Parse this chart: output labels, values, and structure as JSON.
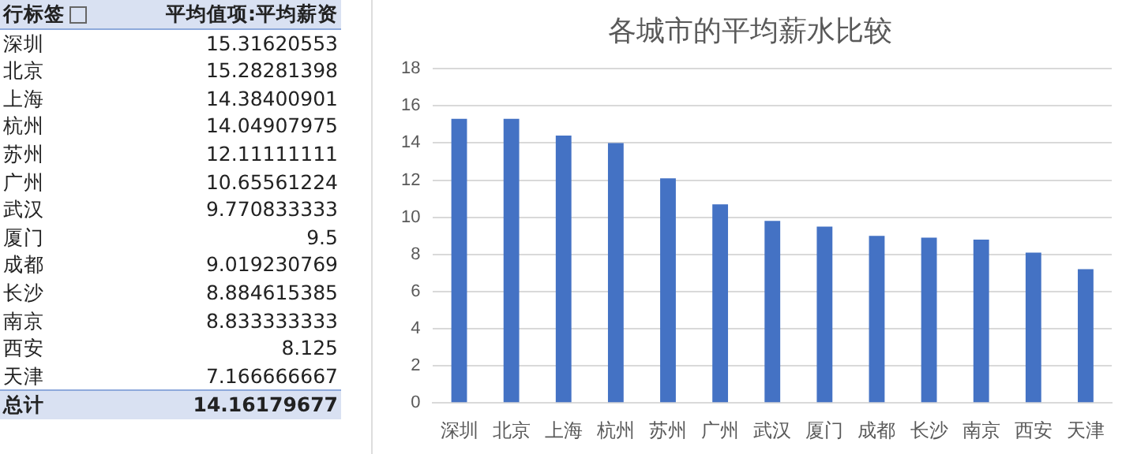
{
  "chart_data": [
    {
      "type": "other",
      "annotations": [
        "行标签",
        "平均值项:平均薪资",
        "深圳",
        "15.31620553",
        "北京",
        "15.28281398",
        "上海",
        "14.38400901",
        "杭州",
        "14.04907975",
        "苏州",
        "12.11111111",
        "广州",
        "10.65561224",
        "武汉",
        "9.770833333",
        "厦门",
        "9.5",
        "成都",
        "9.019230769",
        "长沙",
        "8.884615385",
        "南京",
        "8.833333333",
        "西安",
        "8.125",
        "天津",
        "7.166666667",
        "总计",
        "14.16179677"
      ]
    },
    {
      "type": "bar",
      "title": "各城市的平均薪水比较",
      "categories": [
        "深圳",
        "北京",
        "上海",
        "杭州",
        "苏州",
        "广州",
        "武汉",
        "厦门",
        "成都",
        "长沙",
        "南京",
        "西安",
        "天津"
      ],
      "values": [
        15.3,
        15.3,
        14.4,
        14.0,
        12.1,
        10.7,
        9.8,
        9.5,
        9.0,
        8.9,
        8.8,
        8.1,
        7.2
      ],
      "color": "#4472c4",
      "ylim": [
        0,
        18
      ],
      "yticks": [
        0,
        2,
        4,
        6,
        8,
        10,
        12,
        14,
        16,
        18
      ],
      "grid": "y",
      "legend": false
    }
  ]
}
